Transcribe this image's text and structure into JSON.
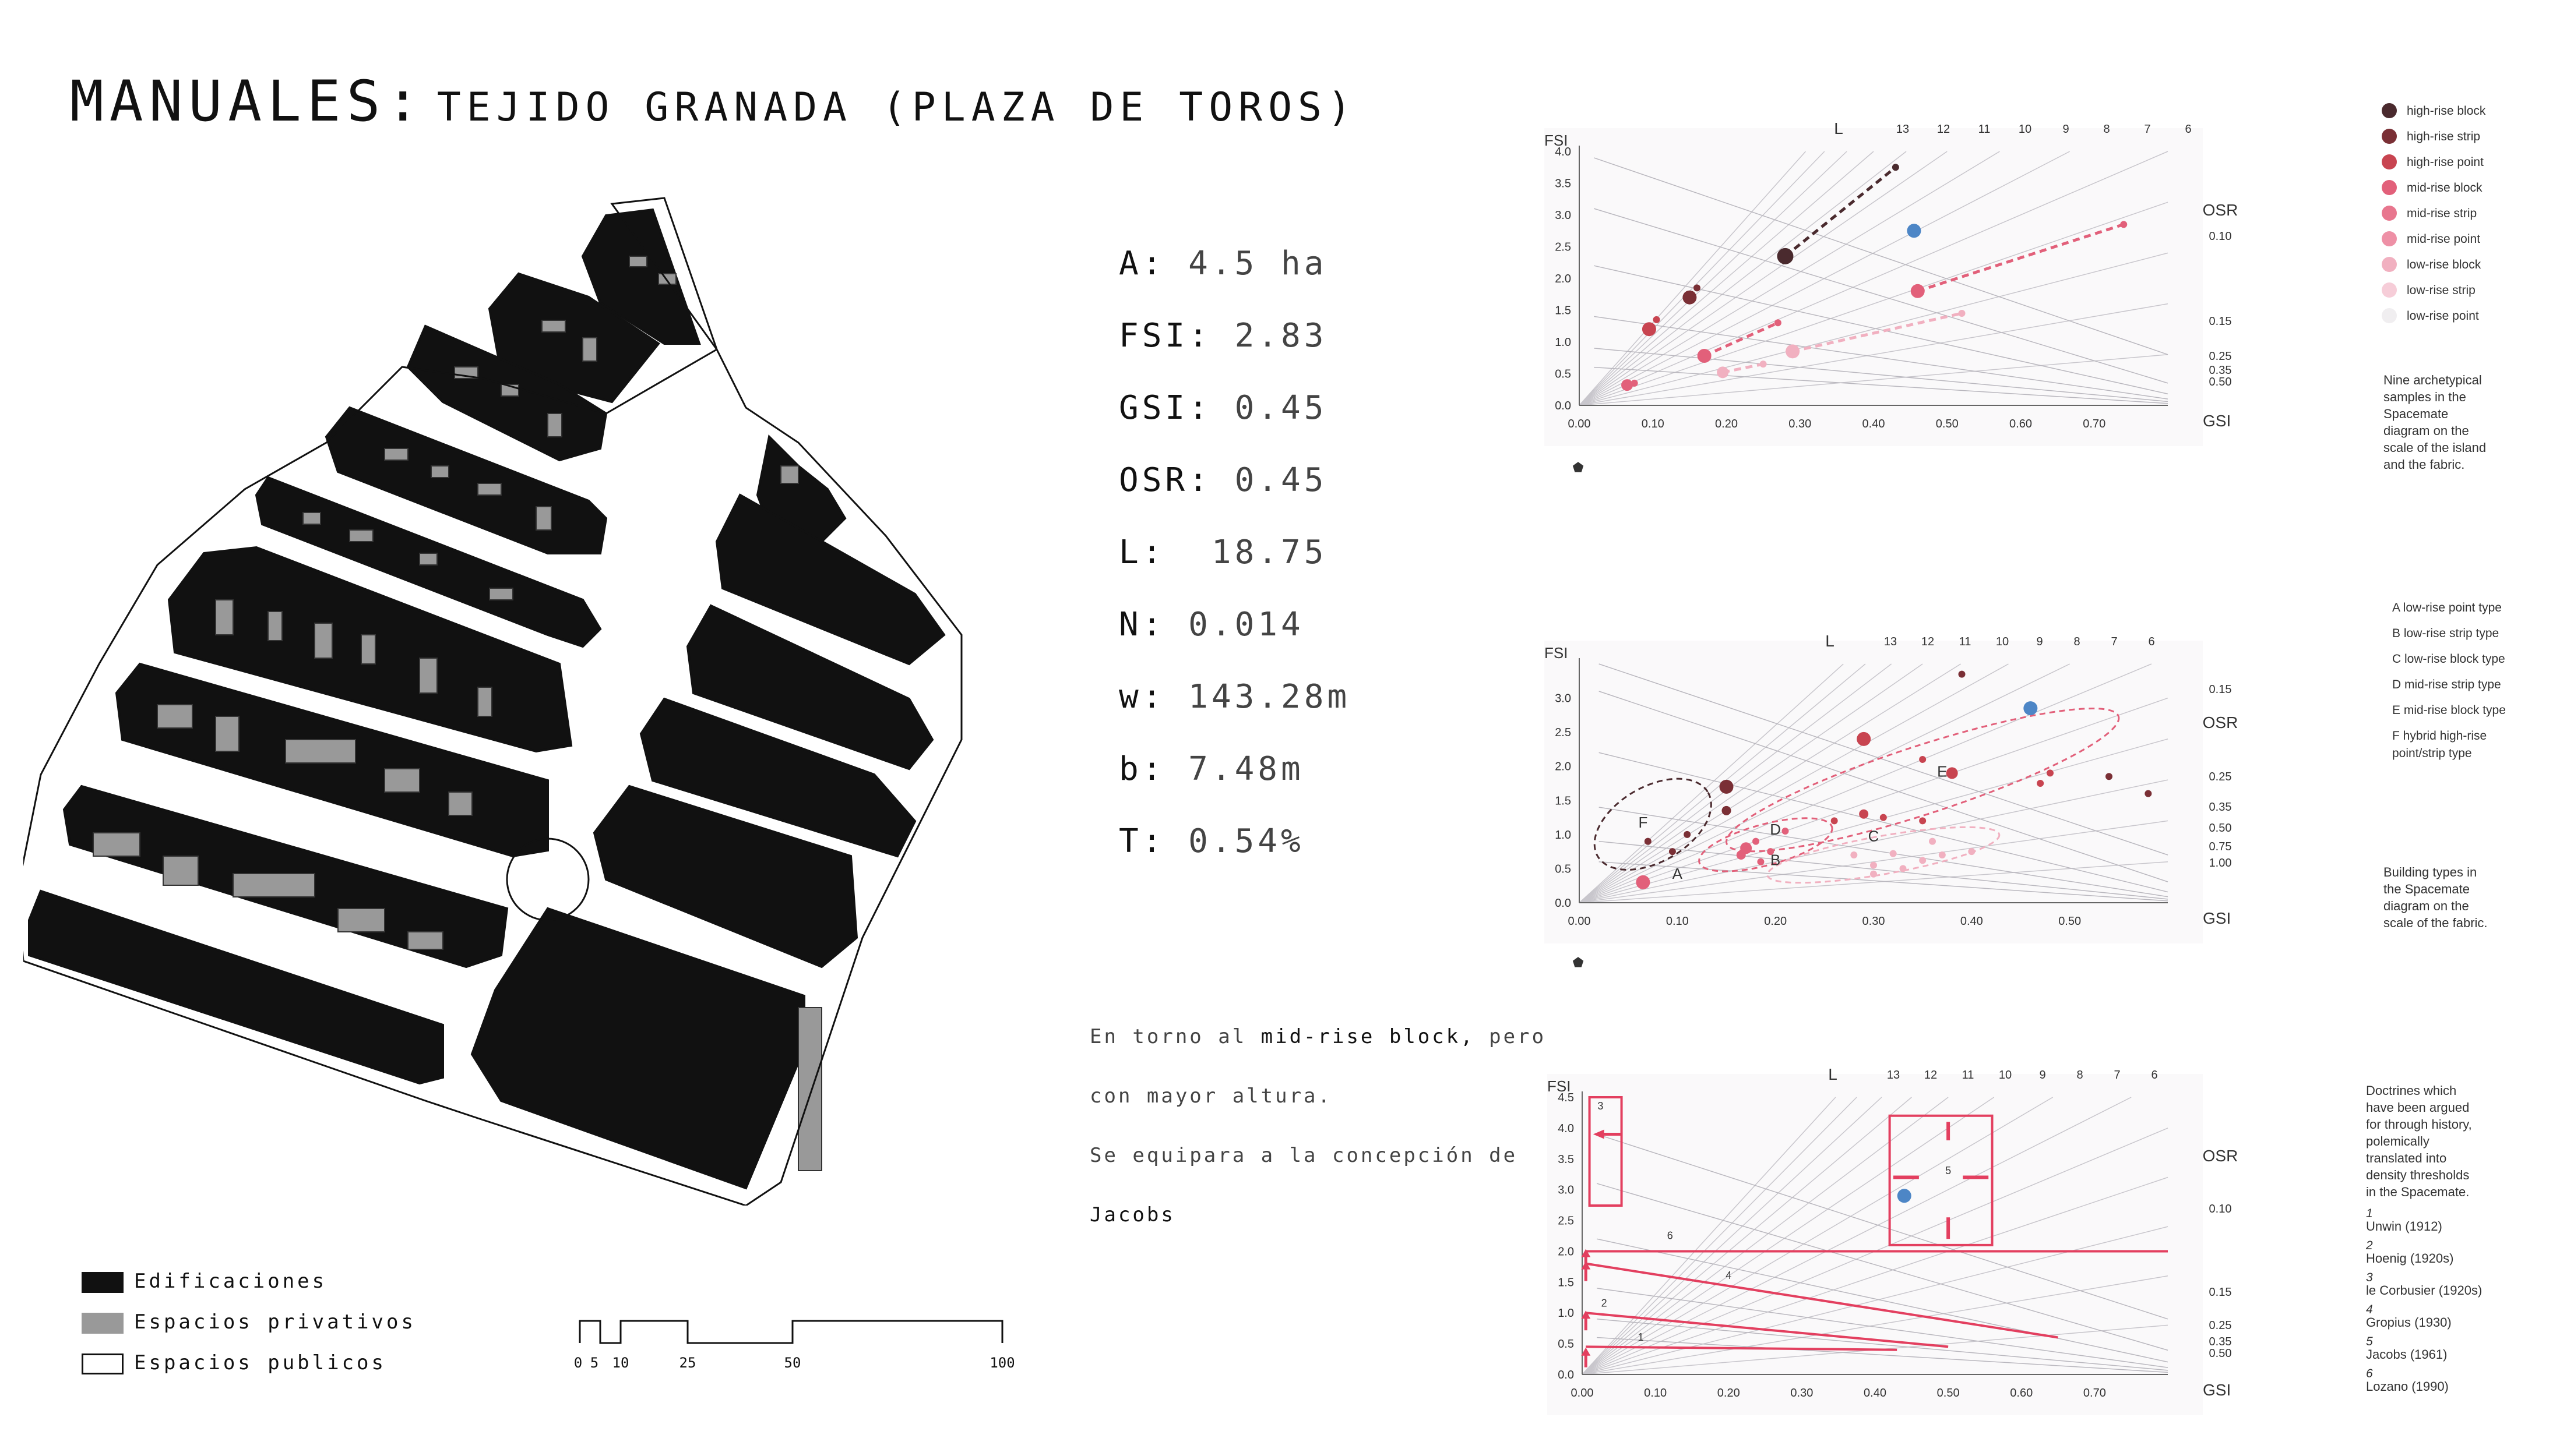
{
  "title": {
    "main": "MANUALES:",
    "sub": "TEJIDO GRANADA (PLAZA DE TOROS)"
  },
  "metrics": [
    {
      "label": "A:",
      "value": "4.5 ha"
    },
    {
      "label": "FSI:",
      "value": "2.83"
    },
    {
      "label": "GSI:",
      "value": "0.45"
    },
    {
      "label": "OSR:",
      "value": "0.45"
    },
    {
      "label": "L:",
      "value": "18.75"
    },
    {
      "label": "N:",
      "value": "0.014"
    },
    {
      "label": "w:",
      "value": "143.28m"
    },
    {
      "label": "b:",
      "value": "7.48m"
    },
    {
      "label": "T:",
      "value": "0.54%"
    }
  ],
  "note": {
    "l1a": "En torno al ",
    "l1b": "mid-rise block,",
    "l1c": " pero",
    "l2": "con mayor altura.",
    "l3": "Se equipara a la concepción de",
    "l4": "Jacobs"
  },
  "legend": [
    "Edificaciones",
    "Espacios privativos",
    "Espacios publicos"
  ],
  "scale": [
    "0",
    "5",
    "10",
    "25",
    "50",
    "100"
  ],
  "colors": {
    "dark": "#4a2a2e",
    "brown": "#7a2f35",
    "red": "#c84450",
    "pink": "#e2607a",
    "light": "#f1b0c0",
    "blue": "#4d86c6",
    "doctrine": "#e33f5f"
  },
  "chart_data": [
    {
      "type": "scatter",
      "title": "",
      "xlabel": "GSI",
      "ylabel": "FSI",
      "xlim": [
        0,
        0.8
      ],
      "ylim": [
        0,
        4.0
      ],
      "xticks": [
        "0.00",
        "0.10",
        "0.20",
        "0.30",
        "0.40",
        "0.50",
        "0.60",
        "0.70"
      ],
      "yticks": [
        "0.0",
        "0.5",
        "1.0",
        "1.5",
        "2.0",
        "2.5",
        "3.0",
        "3.5",
        "4.0"
      ],
      "top_labels": [
        "L",
        "13",
        "12",
        "11",
        "10",
        "9",
        "8",
        "7",
        "6"
      ],
      "osr_labels": [
        "OSR",
        "0.10",
        "0.15",
        "0.25",
        "0.35",
        "0.50"
      ],
      "legend": [
        "high-rise block",
        "high-rise strip",
        "high-rise point",
        "mid-rise block",
        "mid-rise strip",
        "mid-rise point",
        "low-rise block",
        "low-rise strip",
        "low-rise point"
      ],
      "caption": [
        "Nine archetypical",
        "samples in the",
        "Spacemate",
        "diagram on the",
        "scale of the island",
        "and the fabric."
      ],
      "series": [
        {
          "name": "high-rise block",
          "points": [
            [
              0.28,
              2.35,
              14
            ],
            [
              0.43,
              3.75,
              6
            ]
          ]
        },
        {
          "name": "high-rise strip",
          "points": [
            [
              0.15,
              1.7,
              12
            ],
            [
              0.16,
              1.85,
              6
            ]
          ]
        },
        {
          "name": "high-rise point",
          "points": [
            [
              0.095,
              1.2,
              12
            ],
            [
              0.105,
              1.35,
              6
            ]
          ]
        },
        {
          "name": "mid-rise block",
          "points": [
            [
              0.46,
              1.8,
              12
            ],
            [
              0.74,
              2.85,
              6
            ]
          ]
        },
        {
          "name": "mid-rise strip",
          "points": [
            [
              0.17,
              0.78,
              12
            ],
            [
              0.27,
              1.3,
              6
            ]
          ]
        },
        {
          "name": "mid-rise point",
          "points": [
            [
              0.065,
              0.32,
              10
            ],
            [
              0.075,
              0.35,
              6
            ]
          ]
        },
        {
          "name": "low-rise block",
          "points": [
            [
              0.29,
              0.85,
              12
            ],
            [
              0.52,
              1.45,
              6
            ]
          ]
        },
        {
          "name": "low-rise strip",
          "points": [
            [
              0.195,
              0.52,
              10
            ],
            [
              0.25,
              0.65,
              6
            ]
          ]
        },
        {
          "name": "Plaza de Toros",
          "points": [
            [
              0.455,
              2.75,
              12
            ]
          ]
        }
      ]
    },
    {
      "type": "scatter",
      "title": "",
      "xlabel": "GSI",
      "ylabel": "FSI",
      "xlim": [
        0,
        0.6
      ],
      "ylim": [
        0,
        3.5
      ],
      "xticks": [
        "0.00",
        "0.10",
        "0.20",
        "0.30",
        "0.40",
        "0.50"
      ],
      "yticks": [
        "0.0",
        "0.5",
        "1.0",
        "1.5",
        "2.0",
        "2.5",
        "3.0"
      ],
      "top_labels": [
        "L",
        "13",
        "12",
        "11",
        "10",
        "9",
        "8",
        "7",
        "6"
      ],
      "osr_labels": [
        "OSR",
        "0.15",
        "0.25",
        "0.35",
        "0.50",
        "0.75",
        "1.00"
      ],
      "legend": [
        "A  low-rise point type",
        "B  low-rise strip type",
        "C  low-rise block type",
        "D  mid-rise strip type",
        "E  mid-rise block type",
        "F  hybrid high-rise",
        "point/strip type"
      ],
      "caption": [
        "Building types in",
        "the Spacemate",
        "diagram on the",
        "scale of the fabric."
      ],
      "groups": [
        "A",
        "B",
        "C",
        "D",
        "E",
        "F"
      ],
      "series": [
        {
          "name": "F",
          "points": [
            [
              0.15,
              1.7,
              12
            ],
            [
              0.07,
              0.9,
              6
            ],
            [
              0.095,
              0.75,
              6
            ],
            [
              0.15,
              1.35,
              8
            ],
            [
              0.11,
              1.0,
              6
            ]
          ]
        },
        {
          "name": "D",
          "points": [
            [
              0.17,
              0.8,
              10
            ],
            [
              0.165,
              0.7,
              8
            ],
            [
              0.18,
              0.9,
              6
            ],
            [
              0.195,
              0.75,
              6
            ],
            [
              0.21,
              1.05,
              6
            ],
            [
              0.185,
              0.6,
              6
            ]
          ]
        },
        {
          "name": "E",
          "points": [
            [
              0.29,
              2.4,
              12
            ],
            [
              0.38,
              1.9,
              10
            ],
            [
              0.29,
              1.3,
              8
            ],
            [
              0.31,
              1.25,
              6
            ],
            [
              0.35,
              1.2,
              6
            ],
            [
              0.26,
              1.2,
              6
            ],
            [
              0.35,
              2.1,
              6
            ],
            [
              0.47,
              1.75,
              6
            ],
            [
              0.48,
              1.9,
              6
            ]
          ]
        },
        {
          "name": "C",
          "points": [
            [
              0.28,
              0.7,
              6
            ],
            [
              0.3,
              0.55,
              6
            ],
            [
              0.32,
              0.72,
              6
            ],
            [
              0.33,
              0.5,
              6
            ],
            [
              0.35,
              0.62,
              6
            ],
            [
              0.36,
              0.9,
              6
            ],
            [
              0.37,
              0.7,
              6
            ],
            [
              0.4,
              0.75,
              6
            ],
            [
              0.3,
              0.42,
              6
            ]
          ]
        },
        {
          "name": "A",
          "points": [
            [
              0.065,
              0.3,
              12
            ]
          ]
        },
        {
          "name": "high",
          "points": [
            [
              0.39,
              3.35,
              6
            ],
            [
              0.54,
              1.85,
              6
            ],
            [
              0.58,
              1.6,
              6
            ]
          ]
        },
        {
          "name": "Plaza de Toros",
          "points": [
            [
              0.46,
              2.85,
              12
            ]
          ]
        }
      ]
    },
    {
      "type": "line",
      "title": "",
      "xlabel": "GSI",
      "ylabel": "FSI",
      "xlim": [
        0,
        0.8
      ],
      "ylim": [
        0,
        4.5
      ],
      "xticks": [
        "0.00",
        "0.10",
        "0.20",
        "0.30",
        "0.40",
        "0.50",
        "0.60",
        "0.70"
      ],
      "yticks": [
        "0.0",
        "0.5",
        "1.0",
        "1.5",
        "2.0",
        "2.5",
        "3.0",
        "3.5",
        "4.0",
        "4.5"
      ],
      "top_labels": [
        "L",
        "13",
        "12",
        "11",
        "10",
        "9",
        "8",
        "7",
        "6"
      ],
      "osr_labels": [
        "OSR",
        "0.10",
        "0.15",
        "0.25",
        "0.35",
        "0.50"
      ],
      "caption": [
        "Doctrines which",
        "have been argued",
        "for through history,",
        "polemically",
        "translated into",
        "density thresholds",
        "in the Spacemate."
      ],
      "doctrines": [
        {
          "num": "1",
          "name": "Unwin (1912)",
          "gsi": 0.43,
          "fsi": 0.4
        },
        {
          "num": "2",
          "name": "Hoenig (1920s)",
          "gsi": 0.5,
          "fsi": 1.0
        },
        {
          "num": "3",
          "name": "le Corbusier (1920s)",
          "gsi": 0.05,
          "fsi": 4.0
        },
        {
          "num": "4",
          "name": "Gropius (1930)",
          "gsi": 0.65,
          "fsi": 1.8
        },
        {
          "num": "5",
          "name": "Jacobs (1961)",
          "gsi": 0.5,
          "fsi": 3.2
        },
        {
          "num": "6",
          "name": "Lozano (1990)",
          "gsi": 0.8,
          "fsi": 2.0
        }
      ],
      "series": [
        {
          "name": "Plaza de Toros",
          "points": [
            [
              0.44,
              2.9,
              12
            ]
          ]
        }
      ]
    }
  ]
}
